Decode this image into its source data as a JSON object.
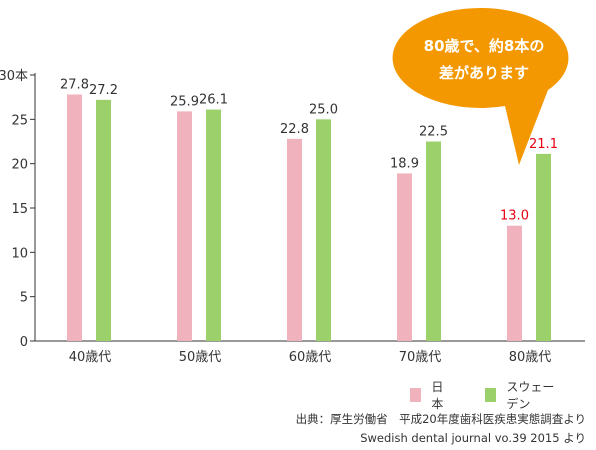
{
  "chart_data": {
    "type": "bar",
    "categories": [
      "40歳代",
      "50歳代",
      "60歳代",
      "70歳代",
      "80歳代"
    ],
    "series": [
      {
        "name": "日本",
        "values": [
          27.8,
          25.9,
          22.8,
          18.9,
          13.0
        ],
        "labels": [
          "27.8",
          "25.9",
          "22.8",
          "18.9",
          "13.0"
        ],
        "color": "#f0b3bd"
      },
      {
        "name": "スウェーデン",
        "values": [
          27.2,
          26.1,
          25.0,
          22.5,
          21.1
        ],
        "labels": [
          "27.2",
          "26.1",
          "25.0",
          "22.5",
          "21.1"
        ],
        "color": "#9bd06a"
      }
    ],
    "highlight_category_index": 4,
    "highlight_color": "#e60012",
    "ylim": [
      0,
      30
    ],
    "yticks": [
      "0",
      "5",
      "10",
      "15",
      "20",
      "25",
      "30本"
    ],
    "ytick_values": [
      0,
      5,
      10,
      15,
      20,
      25,
      30
    ],
    "grid": false,
    "legend_position": "bottom-right"
  },
  "callout": {
    "line1": "80歳で、約8本の",
    "line2": "差があります",
    "color": "#f39800"
  },
  "legend": {
    "japan": "日本",
    "sweden": "スウェーデン"
  },
  "source": {
    "line1": "出典：厚生労働省　平成20年度歯科医疾患実態調査より",
    "line2": "Swedish dental journal vo.39 2015 より"
  }
}
